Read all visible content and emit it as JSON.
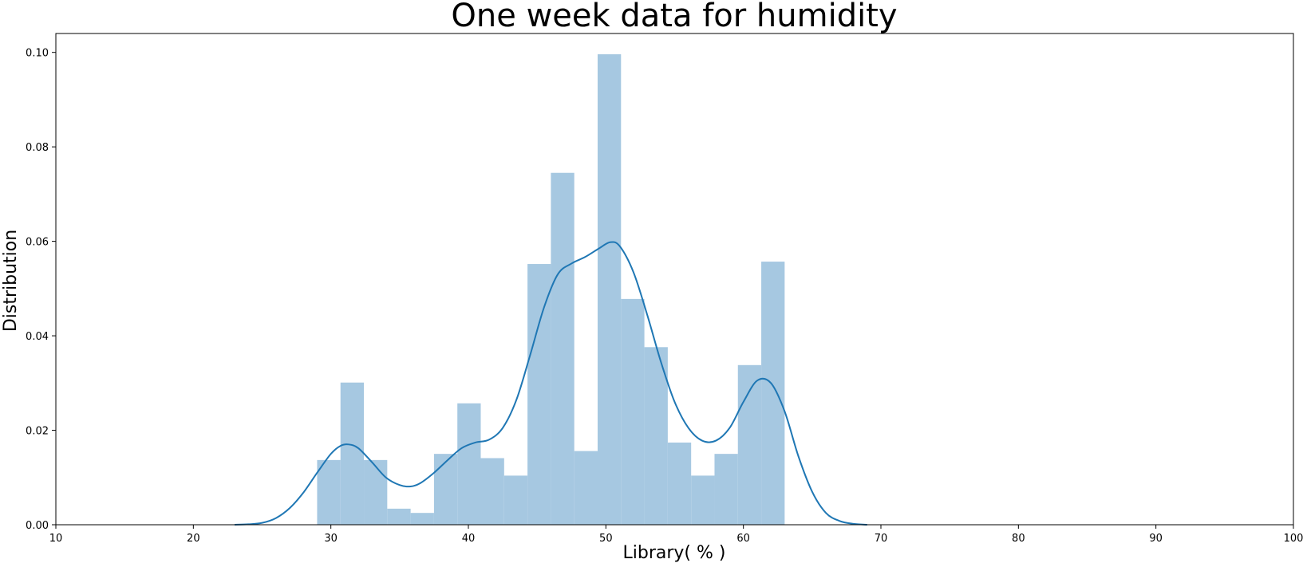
{
  "chart_data": {
    "type": "histogram",
    "title": "One week data for humidity",
    "xlabel": "Library( % )",
    "ylabel": "Distribution",
    "xlim": [
      10,
      100
    ],
    "ylim": [
      0,
      0.104
    ],
    "xticks": [
      10,
      20,
      30,
      40,
      50,
      60,
      70,
      80,
      90,
      100
    ],
    "yticks": [
      0.0,
      0.02,
      0.04,
      0.06,
      0.08,
      0.1
    ],
    "ytick_labels": [
      "0.00",
      "0.02",
      "0.04",
      "0.06",
      "0.08",
      "0.10"
    ],
    "grid": false,
    "bar_color": "#a6c8e1",
    "line_color": "#1f77b4",
    "bins": [
      {
        "x0": 29.0,
        "x1": 30.7,
        "value": 0.0137
      },
      {
        "x0": 30.7,
        "x1": 32.4,
        "value": 0.0301
      },
      {
        "x0": 32.4,
        "x1": 34.1,
        "value": 0.0137
      },
      {
        "x0": 34.1,
        "x1": 35.8,
        "value": 0.0034
      },
      {
        "x0": 35.8,
        "x1": 37.5,
        "value": 0.0025
      },
      {
        "x0": 37.5,
        "x1": 39.2,
        "value": 0.015
      },
      {
        "x0": 39.2,
        "x1": 40.9,
        "value": 0.0257
      },
      {
        "x0": 40.9,
        "x1": 42.6,
        "value": 0.0141
      },
      {
        "x0": 42.6,
        "x1": 44.3,
        "value": 0.0104
      },
      {
        "x0": 44.3,
        "x1": 46.0,
        "value": 0.0552
      },
      {
        "x0": 46.0,
        "x1": 47.7,
        "value": 0.0745
      },
      {
        "x0": 47.7,
        "x1": 49.4,
        "value": 0.0156
      },
      {
        "x0": 49.4,
        "x1": 51.1,
        "value": 0.0996
      },
      {
        "x0": 51.1,
        "x1": 52.8,
        "value": 0.0478
      },
      {
        "x0": 52.8,
        "x1": 54.5,
        "value": 0.0376
      },
      {
        "x0": 54.5,
        "x1": 56.2,
        "value": 0.0174
      },
      {
        "x0": 56.2,
        "x1": 57.9,
        "value": 0.0104
      },
      {
        "x0": 57.9,
        "x1": 59.6,
        "value": 0.015
      },
      {
        "x0": 59.6,
        "x1": 61.3,
        "value": 0.0338
      },
      {
        "x0": 61.3,
        "x1": 63.0,
        "value": 0.0557
      }
    ],
    "kde": {
      "x": [
        23.0,
        24.0,
        25.0,
        26.0,
        27.0,
        28.0,
        29.0,
        30.0,
        30.7,
        31.3,
        32.0,
        33.0,
        34.0,
        35.0,
        35.8,
        36.5,
        37.5,
        38.5,
        39.5,
        40.5,
        41.5,
        42.5,
        43.5,
        44.5,
        45.5,
        46.5,
        47.5,
        48.5,
        49.5,
        50.3,
        51.0,
        52.0,
        53.0,
        54.0,
        55.0,
        56.0,
        57.0,
        58.0,
        59.0,
        60.0,
        61.0,
        62.0,
        63.0,
        64.0,
        65.0,
        66.0,
        67.0,
        68.0,
        69.0
      ],
      "y": [
        0.0,
        0.0001,
        0.0004,
        0.0014,
        0.0035,
        0.0068,
        0.011,
        0.015,
        0.0167,
        0.017,
        0.0162,
        0.0132,
        0.01,
        0.0084,
        0.0081,
        0.0088,
        0.011,
        0.0137,
        0.0162,
        0.0174,
        0.018,
        0.0205,
        0.0265,
        0.036,
        0.046,
        0.053,
        0.0553,
        0.0567,
        0.0585,
        0.0598,
        0.059,
        0.0535,
        0.0445,
        0.0345,
        0.026,
        0.0205,
        0.0178,
        0.0178,
        0.0205,
        0.026,
        0.0305,
        0.03,
        0.024,
        0.0145,
        0.007,
        0.0025,
        0.0008,
        0.0002,
        0.0
      ]
    }
  }
}
